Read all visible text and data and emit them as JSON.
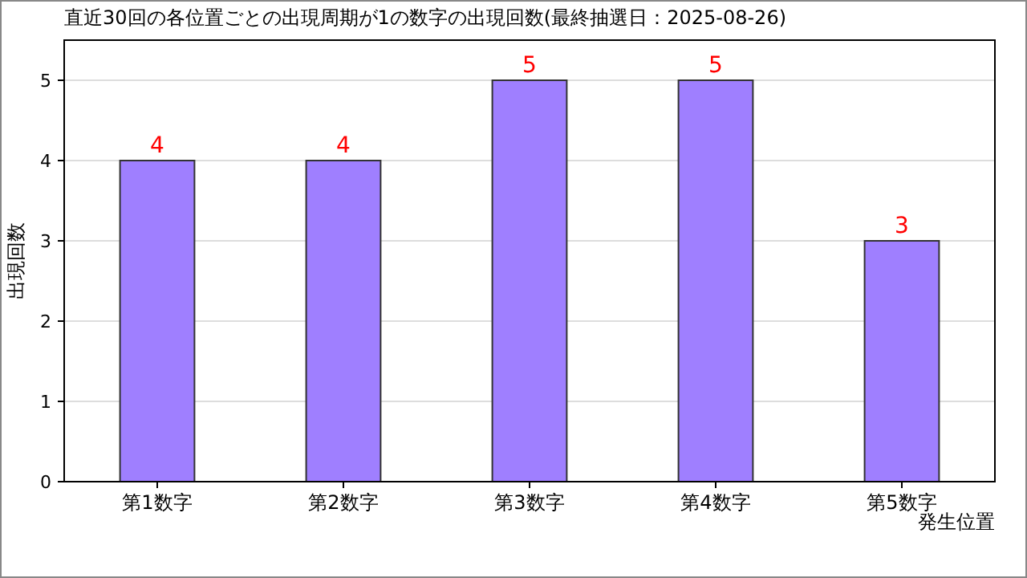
{
  "chart_data": {
    "type": "bar",
    "title": "直近30回の各位置ごとの出現周期が1の数字の出現回数(最終抽選日：2025-08-26)",
    "xlabel": "発生位置",
    "ylabel": "出現回数",
    "categories": [
      "第1数字",
      "第2数字",
      "第3数字",
      "第4数字",
      "第5数字"
    ],
    "values": [
      4,
      4,
      5,
      5,
      3
    ],
    "color": "#9f7fff",
    "ylim": [
      0,
      5.5
    ],
    "yticks": [
      0,
      1,
      2,
      3,
      4,
      5
    ],
    "grid": "y",
    "data_labels": true
  }
}
